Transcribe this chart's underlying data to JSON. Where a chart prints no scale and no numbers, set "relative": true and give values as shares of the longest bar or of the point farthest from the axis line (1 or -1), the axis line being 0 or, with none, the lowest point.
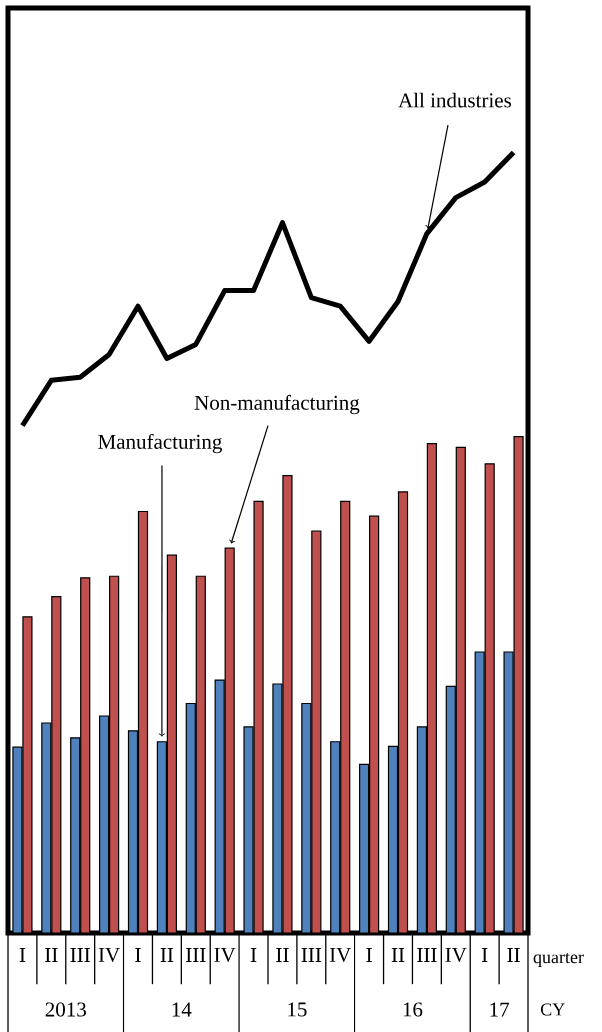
{
  "chart_data": {
    "type": "bar",
    "relative": true,
    "xlabel": "quarter",
    "categories": [
      "I",
      "II",
      "III",
      "IV",
      "I",
      "II",
      "III",
      "IV",
      "I",
      "II",
      "III",
      "IV",
      "I",
      "II",
      "III",
      "IV",
      "I",
      "II"
    ],
    "series": [
      {
        "name": "All industries",
        "type": "line",
        "color": "#000000",
        "line_style": "solid",
        "values": [
          0.65,
          0.708,
          0.712,
          0.741,
          0.803,
          0.736,
          0.754,
          0.823,
          0.823,
          0.91,
          0.814,
          0.803,
          0.758,
          0.809,
          0.896,
          0.942,
          0.962,
          1.0
        ]
      },
      {
        "name": "Manufacturing",
        "color": "#4f81bd",
        "values": [
          0.238,
          0.269,
          0.25,
          0.278,
          0.259,
          0.245,
          0.294,
          0.324,
          0.264,
          0.319,
          0.294,
          0.245,
          0.216,
          0.239,
          0.264,
          0.316,
          0.36,
          0.36
        ]
      },
      {
        "name": "Non-manufacturing",
        "color": "#c0504d",
        "values": [
          0.405,
          0.431,
          0.455,
          0.457,
          0.54,
          0.484,
          0.457,
          0.493,
          0.553,
          0.586,
          0.515,
          0.553,
          0.534,
          0.565,
          0.627,
          0.622,
          0.601,
          0.636
        ]
      }
    ],
    "annotations": [
      "2013",
      "14",
      "15",
      "16",
      "17",
      "CY"
    ]
  }
}
